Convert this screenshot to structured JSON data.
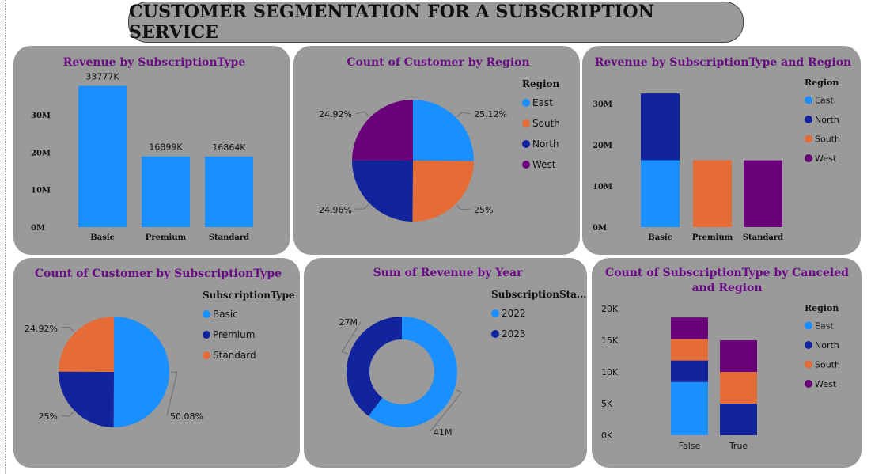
{
  "page_title": "CUSTOMER SEGMENTATION FOR A SUBSCRIPTION SERVICE",
  "colors": {
    "east": "#1a8fff",
    "north": "#12239e",
    "south": "#e66c37",
    "west": "#6b007b",
    "panel": "#9a9a9a",
    "title": "#6a0c85"
  },
  "chart_data": [
    {
      "id": "rev-by-type",
      "type": "bar",
      "title": "Revenue by SubscriptionType",
      "categories": [
        "Basic",
        "Premium",
        "Standard"
      ],
      "values": [
        33777,
        16899,
        16864
      ],
      "data_labels": [
        "33777K",
        "16899K",
        "16864K"
      ],
      "y_ticks": [
        "30M",
        "20M",
        "10M",
        "0M"
      ],
      "ylim": [
        0,
        35000
      ],
      "legend": null
    },
    {
      "id": "cust-by-region",
      "type": "pie",
      "title": "Count of Customer by Region",
      "legend_title": "Region",
      "slices": [
        {
          "name": "East",
          "value": 25.12,
          "label": "25.12%"
        },
        {
          "name": "South",
          "value": 25,
          "label": "25%"
        },
        {
          "name": "North",
          "value": 24.96,
          "label": "24.96%"
        },
        {
          "name": "West",
          "value": 24.92,
          "label": "24.92%"
        }
      ]
    },
    {
      "id": "rev-by-type-region",
      "type": "bar",
      "stacked": true,
      "title": "Revenue by SubscriptionType and Region",
      "categories": [
        "Basic",
        "Premium",
        "Standard"
      ],
      "legend_title": "Region",
      "legend": [
        "East",
        "North",
        "South",
        "West"
      ],
      "series": [
        {
          "name": "East",
          "values": [
            16900,
            0,
            0
          ]
        },
        {
          "name": "North",
          "values": [
            16877,
            0,
            0
          ]
        },
        {
          "name": "South",
          "values": [
            0,
            16899,
            0
          ]
        },
        {
          "name": "West",
          "values": [
            0,
            0,
            16864
          ]
        }
      ],
      "y_ticks": [
        "30M",
        "20M",
        "10M",
        "0M"
      ],
      "ylim": [
        0,
        35000
      ]
    },
    {
      "id": "cust-by-type",
      "type": "pie",
      "title": "Count of Customer by SubscriptionType",
      "legend_title": "SubscriptionType",
      "slices": [
        {
          "name": "Basic",
          "value": 50.08,
          "label": "50.08%"
        },
        {
          "name": "Premium",
          "value": 25,
          "label": "25%"
        },
        {
          "name": "Standard",
          "value": 24.92,
          "label": "24.92%"
        }
      ]
    },
    {
      "id": "rev-by-year",
      "type": "pie",
      "donut": true,
      "title": "Sum of Revenue by Year",
      "legend_title": "SubscriptionSta...",
      "slices": [
        {
          "name": "2022",
          "value": 41,
          "label": "41M"
        },
        {
          "name": "2023",
          "value": 27,
          "label": "27M"
        }
      ]
    },
    {
      "id": "type-by-canceled-region",
      "type": "bar",
      "stacked": true,
      "title_lines": [
        "Count of SubscriptionType by Canceled",
        "and Region"
      ],
      "categories": [
        "False",
        "True"
      ],
      "legend_title": "Region",
      "legend": [
        "East",
        "North",
        "South",
        "West"
      ],
      "series": [
        {
          "name": "East",
          "values": [
            8400,
            0
          ]
        },
        {
          "name": "North",
          "values": [
            3400,
            5000
          ]
        },
        {
          "name": "South",
          "values": [
            3400,
            5000
          ]
        },
        {
          "name": "West",
          "values": [
            3400,
            5000
          ]
        }
      ],
      "y_ticks": [
        "20K",
        "15K",
        "10K",
        "5K",
        "0K"
      ],
      "ylim": [
        0,
        20000
      ]
    }
  ]
}
